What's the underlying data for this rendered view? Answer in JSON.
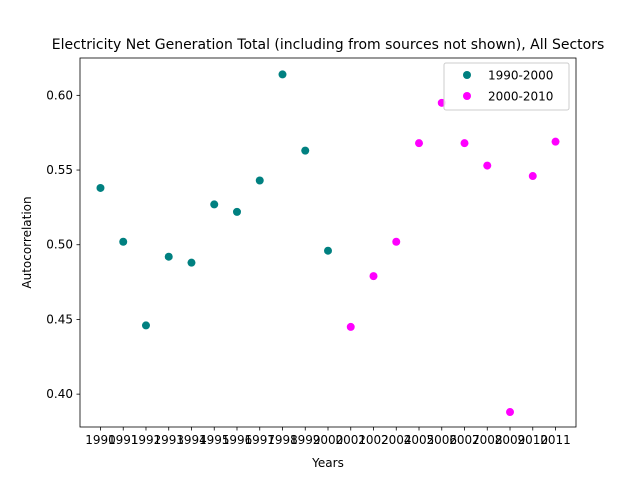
{
  "chart_data": {
    "type": "scatter",
    "title": "Electricity Net Generation Total (including from sources not shown), All Sectors",
    "xlabel": "Years",
    "ylabel": "Autocorrelation",
    "categories": [
      "1990",
      "1991",
      "1992",
      "1993",
      "1994",
      "1995",
      "1996",
      "1997",
      "1998",
      "1999",
      "2000",
      "2001",
      "2002",
      "2004",
      "2005",
      "2006",
      "2007",
      "2008",
      "2009",
      "2010",
      "2011"
    ],
    "ylim": [
      0.378,
      0.625
    ],
    "yticks": [
      "0.40",
      "0.45",
      "0.50",
      "0.55",
      "0.60"
    ],
    "grid": false,
    "legend_position": "upper right",
    "series": [
      {
        "name": "1990-2000",
        "color": "#008080",
        "x": [
          "1990",
          "1991",
          "1992",
          "1993",
          "1994",
          "1995",
          "1996",
          "1997",
          "1998",
          "1999",
          "2000"
        ],
        "values": [
          0.538,
          0.502,
          0.446,
          0.492,
          0.488,
          0.527,
          0.522,
          0.543,
          0.614,
          0.563,
          0.496
        ]
      },
      {
        "name": "2000-2010",
        "color": "#ff00ff",
        "x": [
          "2001",
          "2002",
          "2004",
          "2005",
          "2006",
          "2007",
          "2008",
          "2009",
          "2010",
          "2011"
        ],
        "values": [
          0.445,
          0.479,
          0.502,
          0.568,
          0.595,
          0.568,
          0.553,
          0.388,
          0.546,
          0.569
        ]
      }
    ]
  }
}
